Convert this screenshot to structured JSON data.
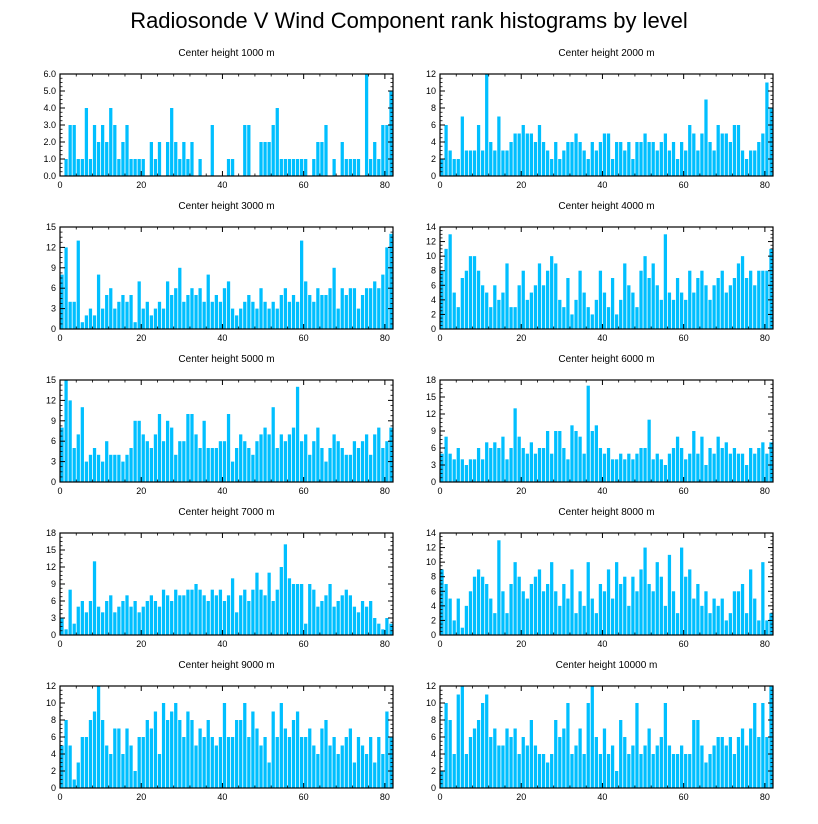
{
  "title": "Radiosonde V Wind Component rank histograms by level",
  "colors": {
    "bar": "#00bfff",
    "frame": "#000000",
    "background": "#ffffff"
  },
  "chart_data": [
    {
      "type": "bar",
      "title": "Center height 1000 m",
      "xlim": [
        0,
        82
      ],
      "ylim": [
        0,
        6
      ],
      "xticks": [
        "0",
        "20",
        "40",
        "60",
        "80"
      ],
      "yticks": [
        "0.0",
        "1.0",
        "2.0",
        "3.0",
        "4.0",
        "5.0",
        "6.0"
      ],
      "values": [
        0,
        1,
        3,
        3,
        1,
        1,
        4,
        1,
        3,
        2,
        3,
        2,
        4,
        3,
        1,
        2,
        3,
        1,
        1,
        1,
        1,
        0,
        2,
        1,
        2,
        0,
        2,
        4,
        2,
        1,
        2,
        1,
        2,
        0,
        1,
        0,
        0,
        3,
        0,
        0,
        0,
        1,
        1,
        0,
        0,
        3,
        3,
        0,
        0,
        2,
        2,
        2,
        3,
        4,
        1,
        1,
        1,
        1,
        1,
        1,
        1,
        0,
        1,
        2,
        2,
        3,
        0,
        1,
        0,
        2,
        1,
        1,
        1,
        1,
        0,
        6,
        1,
        2,
        1,
        3,
        3,
        5
      ]
    },
    {
      "type": "bar",
      "title": "Center height 2000 m",
      "xlim": [
        0,
        82
      ],
      "ylim": [
        0,
        12
      ],
      "xticks": [
        "0",
        "20",
        "40",
        "60",
        "80"
      ],
      "yticks": [
        "0",
        "2",
        "4",
        "6",
        "8",
        "10",
        "12"
      ],
      "values": [
        2,
        6,
        3,
        2,
        2,
        7,
        3,
        3,
        3,
        6,
        3,
        12,
        4,
        3,
        7,
        3,
        3,
        4,
        5,
        5,
        6,
        5,
        5,
        4,
        6,
        4,
        3,
        2,
        4,
        2,
        3,
        4,
        4,
        5,
        4,
        3,
        2,
        4,
        3,
        4,
        5,
        5,
        2,
        4,
        4,
        3,
        4,
        2,
        4,
        4,
        5,
        4,
        4,
        3,
        4,
        5,
        3,
        4,
        2,
        4,
        3,
        6,
        5,
        3,
        5,
        9,
        4,
        3,
        6,
        5,
        5,
        4,
        6,
        6,
        3,
        2,
        3,
        3,
        4,
        5,
        11,
        8
      ]
    },
    {
      "type": "bar",
      "title": "Center height 3000 m",
      "xlim": [
        0,
        82
      ],
      "ylim": [
        0,
        15
      ],
      "xticks": [
        "0",
        "20",
        "40",
        "60",
        "80"
      ],
      "yticks": [
        "0",
        "3",
        "6",
        "9",
        "12",
        "15"
      ],
      "values": [
        8,
        12,
        4,
        4,
        13,
        1,
        2,
        3,
        2,
        8,
        3,
        5,
        6,
        3,
        4,
        5,
        4,
        5,
        1,
        7,
        3,
        4,
        2,
        3,
        4,
        3,
        7,
        5,
        6,
        9,
        4,
        5,
        6,
        5,
        6,
        4,
        8,
        4,
        5,
        4,
        6,
        7,
        3,
        2,
        3,
        4,
        5,
        4,
        3,
        6,
        4,
        3,
        4,
        3,
        5,
        6,
        4,
        5,
        4,
        13,
        7,
        5,
        4,
        6,
        5,
        5,
        6,
        9,
        3,
        6,
        5,
        6,
        6,
        3,
        5,
        6,
        6,
        7,
        6,
        8,
        12,
        14
      ]
    },
    {
      "type": "bar",
      "title": "Center height 4000 m",
      "xlim": [
        0,
        82
      ],
      "ylim": [
        0,
        14
      ],
      "xticks": [
        "0",
        "20",
        "40",
        "60",
        "80"
      ],
      "yticks": [
        "0",
        "2",
        "4",
        "6",
        "8",
        "10",
        "12",
        "14"
      ],
      "values": [
        8,
        11,
        13,
        5,
        3,
        7,
        8,
        10,
        10,
        8,
        6,
        5,
        3,
        6,
        4,
        5,
        9,
        3,
        3,
        6,
        8,
        4,
        5,
        6,
        9,
        6,
        8,
        10,
        9,
        4,
        3,
        7,
        2,
        4,
        8,
        5,
        3,
        2,
        4,
        8,
        5,
        3,
        7,
        2,
        4,
        9,
        6,
        5,
        3,
        8,
        10,
        7,
        9,
        6,
        4,
        13,
        5,
        4,
        7,
        5,
        4,
        8,
        5,
        7,
        8,
        6,
        4,
        6,
        7,
        8,
        5,
        6,
        7,
        9,
        10,
        7,
        8,
        6,
        8,
        8,
        8,
        11
      ]
    },
    {
      "type": "bar",
      "title": "Center height 5000 m",
      "xlim": [
        0,
        82
      ],
      "ylim": [
        0,
        15
      ],
      "xticks": [
        "0",
        "20",
        "40",
        "60",
        "80"
      ],
      "yticks": [
        "0",
        "3",
        "6",
        "9",
        "12",
        "15"
      ],
      "values": [
        8,
        15,
        12,
        5,
        7,
        11,
        3,
        4,
        5,
        4,
        3,
        6,
        4,
        4,
        4,
        3,
        4,
        5,
        9,
        9,
        7,
        6,
        5,
        7,
        10,
        6,
        9,
        8,
        4,
        6,
        6,
        10,
        10,
        7,
        5,
        9,
        5,
        5,
        5,
        6,
        6,
        10,
        3,
        5,
        7,
        6,
        5,
        4,
        6,
        7,
        8,
        7,
        11,
        5,
        7,
        6,
        7,
        8,
        14,
        6,
        7,
        4,
        6,
        8,
        5,
        3,
        5,
        7,
        6,
        5,
        4,
        4,
        6,
        5,
        6,
        7,
        4,
        7,
        8,
        5,
        6,
        8
      ]
    },
    {
      "type": "bar",
      "title": "Center height 6000 m",
      "xlim": [
        0,
        82
      ],
      "ylim": [
        0,
        18
      ],
      "xticks": [
        "0",
        "20",
        "40",
        "60",
        "80"
      ],
      "yticks": [
        "0",
        "3",
        "6",
        "9",
        "12",
        "15",
        "18"
      ],
      "values": [
        5,
        8,
        5,
        4,
        6,
        4,
        3,
        4,
        4,
        6,
        4,
        7,
        6,
        7,
        6,
        8,
        4,
        6,
        13,
        8,
        6,
        5,
        7,
        5,
        6,
        6,
        9,
        5,
        9,
        9,
        6,
        4,
        10,
        9,
        8,
        5,
        17,
        9,
        10,
        6,
        5,
        6,
        4,
        4,
        5,
        4,
        5,
        4,
        5,
        6,
        6,
        11,
        4,
        5,
        4,
        3,
        5,
        6,
        8,
        6,
        4,
        5,
        9,
        5,
        8,
        3,
        6,
        5,
        8,
        6,
        7,
        5,
        6,
        5,
        5,
        3,
        6,
        5,
        6,
        7,
        5,
        7
      ]
    },
    {
      "type": "bar",
      "title": "Center height 7000 m",
      "xlim": [
        0,
        82
      ],
      "ylim": [
        0,
        18
      ],
      "xticks": [
        "0",
        "20",
        "40",
        "60",
        "80"
      ],
      "yticks": [
        "0",
        "3",
        "6",
        "9",
        "12",
        "15",
        "18"
      ],
      "values": [
        3,
        1,
        8,
        2,
        5,
        6,
        4,
        6,
        13,
        5,
        4,
        6,
        7,
        4,
        5,
        6,
        7,
        5,
        6,
        4,
        5,
        6,
        7,
        6,
        5,
        8,
        7,
        6,
        8,
        7,
        7,
        8,
        8,
        9,
        8,
        7,
        6,
        8,
        7,
        8,
        6,
        7,
        10,
        4,
        7,
        8,
        6,
        8,
        11,
        8,
        7,
        11,
        6,
        8,
        12,
        16,
        10,
        9,
        9,
        9,
        2,
        9,
        8,
        5,
        6,
        7,
        9,
        5,
        6,
        7,
        8,
        7,
        5,
        4,
        6,
        5,
        6,
        3,
        2,
        1,
        3,
        2
      ]
    },
    {
      "type": "bar",
      "title": "Center height 8000 m",
      "xlim": [
        0,
        82
      ],
      "ylim": [
        0,
        14
      ],
      "xticks": [
        "0",
        "20",
        "40",
        "60",
        "80"
      ],
      "yticks": [
        "0",
        "2",
        "4",
        "6",
        "8",
        "10",
        "12",
        "14"
      ],
      "values": [
        9,
        7,
        5,
        2,
        5,
        1,
        4,
        6,
        8,
        9,
        8,
        7,
        5,
        3,
        13,
        6,
        3,
        7,
        10,
        8,
        6,
        5,
        7,
        8,
        9,
        6,
        7,
        10,
        6,
        4,
        7,
        5,
        9,
        3,
        6,
        4,
        10,
        5,
        3,
        7,
        6,
        9,
        5,
        10,
        7,
        8,
        4,
        8,
        6,
        9,
        12,
        7,
        6,
        10,
        8,
        4,
        11,
        6,
        3,
        12,
        8,
        9,
        5,
        7,
        4,
        6,
        3,
        5,
        4,
        5,
        2,
        3,
        6,
        6,
        7,
        3,
        9,
        5,
        2,
        10,
        2,
        3
      ]
    },
    {
      "type": "bar",
      "title": "Center height 9000 m",
      "xlim": [
        0,
        82
      ],
      "ylim": [
        0,
        12
      ],
      "xticks": [
        "0",
        "20",
        "40",
        "60",
        "80"
      ],
      "yticks": [
        "0",
        "2",
        "4",
        "6",
        "8",
        "10",
        "12"
      ],
      "values": [
        5,
        8,
        5,
        1,
        3,
        6,
        6,
        8,
        9,
        12,
        8,
        5,
        4,
        7,
        7,
        4,
        7,
        5,
        2,
        6,
        6,
        8,
        7,
        9,
        4,
        10,
        8,
        9,
        10,
        8,
        6,
        9,
        8,
        5,
        7,
        6,
        8,
        6,
        5,
        6,
        10,
        6,
        6,
        8,
        8,
        10,
        6,
        9,
        7,
        5,
        6,
        3,
        9,
        6,
        10,
        7,
        6,
        8,
        9,
        6,
        6,
        7,
        5,
        4,
        7,
        8,
        5,
        6,
        4,
        5,
        6,
        7,
        3,
        6,
        5,
        4,
        6,
        3,
        6,
        4,
        9,
        6
      ]
    },
    {
      "type": "bar",
      "title": "Center height 10000 m",
      "xlim": [
        0,
        82
      ],
      "ylim": [
        0,
        12
      ],
      "xticks": [
        "0",
        "20",
        "40",
        "60",
        "80"
      ],
      "yticks": [
        "0",
        "2",
        "4",
        "6",
        "8",
        "10",
        "12"
      ],
      "values": [
        2,
        10,
        8,
        4,
        11,
        12,
        4,
        6,
        7,
        8,
        10,
        11,
        6,
        7,
        5,
        5,
        7,
        6,
        7,
        4,
        6,
        5,
        8,
        5,
        4,
        4,
        3,
        4,
        8,
        6,
        7,
        10,
        4,
        5,
        7,
        4,
        10,
        12,
        6,
        4,
        7,
        4,
        5,
        2,
        8,
        6,
        4,
        5,
        10,
        4,
        5,
        7,
        4,
        5,
        6,
        10,
        5,
        4,
        4,
        5,
        4,
        4,
        8,
        8,
        5,
        3,
        4,
        5,
        6,
        6,
        5,
        6,
        4,
        6,
        7,
        5,
        7,
        10,
        6,
        10,
        6,
        12
      ]
    }
  ]
}
